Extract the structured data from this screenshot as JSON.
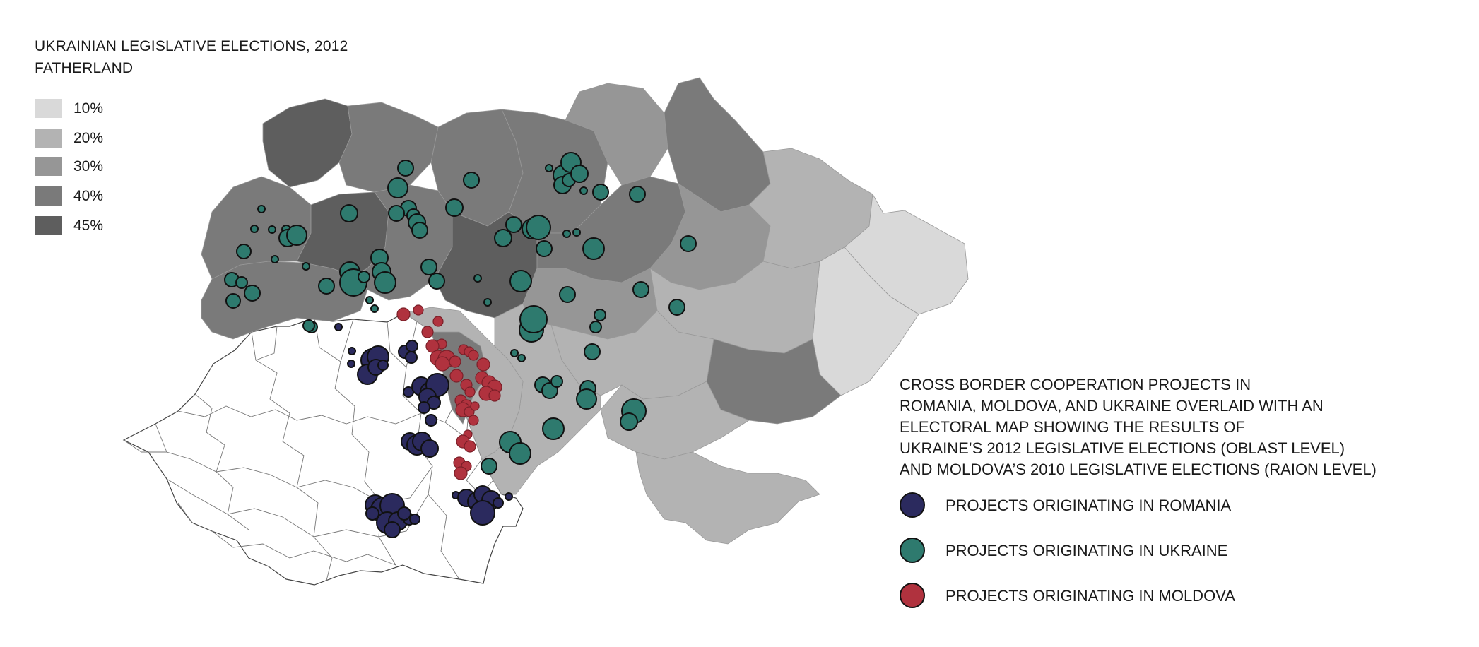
{
  "title_lines": [
    "UKRAINIAN LEGISLATIVE ELECTIONS, 2012",
    "FATHERLAND"
  ],
  "scale": [
    {
      "label": "10%",
      "color": "#d9d9d9"
    },
    {
      "label": "20%",
      "color": "#b3b3b3"
    },
    {
      "label": "30%",
      "color": "#969696"
    },
    {
      "label": "40%",
      "color": "#7a7a7a"
    },
    {
      "label": "45%",
      "color": "#5e5e5e"
    }
  ],
  "description_lines": [
    "CROSS BORDER COOPERATION PROJECTS IN",
    "ROMANIA, MOLDOVA, AND UKRAINE OVERLAID WITH AN",
    "ELECTORAL MAP SHOWING THE RESULTS OF",
    "UKRAINE’S 2012 LEGISLATIVE ELECTIONS (OBLAST LEVEL)",
    "AND MOLDOVA’S 2010 LEGISLATIVE ELECTIONS (RAION LEVEL)"
  ],
  "series": [
    {
      "label": "PROJECTS ORIGINATING IN ROMANIA",
      "color": "#2b2a5e",
      "icon": "navy-circle"
    },
    {
      "label": "PROJECTS ORIGINATING IN UKRAINE",
      "color": "#2e7a6e",
      "icon": "teal-circle"
    },
    {
      "label": "PROJECTS ORIGINATING IN MOLDOVA",
      "color": "#b0323e",
      "icon": "red-circle"
    }
  ]
}
